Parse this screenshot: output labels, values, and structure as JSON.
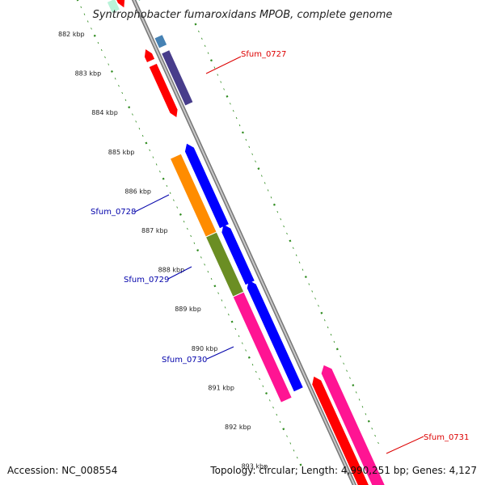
{
  "title": "Syntrophobacter fumaroxidans MPOB, complete genome",
  "accession": "Accession: NC_008554",
  "summary": "Topology: circular; Length: 4,990,251 bp; Genes: 4,127",
  "kbp_labels": [
    "882 kbp",
    "883 kbp",
    "884 kbp",
    "885 kbp",
    "886 kbp",
    "887 kbp",
    "888 kbp",
    "889 kbp",
    "890 kbp",
    "891 kbp",
    "892 kbp",
    "893 kbp"
  ],
  "gene_labels": {
    "sfum_0727": "Sfum_0727",
    "sfum_0728": "Sfum_0728",
    "sfum_0729": "Sfum_0729",
    "sfum_0730": "Sfum_0730",
    "sfum_0731": "Sfum_0731"
  },
  "colors": {
    "backbone": "#8c8c8c",
    "tick": "#2e8b1e",
    "red": "#ff0000",
    "orange": "#ff8c00",
    "olive": "#6b8e23",
    "pink": "#ff1493",
    "blue": "#0000ff",
    "slate": "#483d8b",
    "steel": "#4682b4",
    "label_red": "#dd0000",
    "label_blue": "#0000aa"
  }
}
